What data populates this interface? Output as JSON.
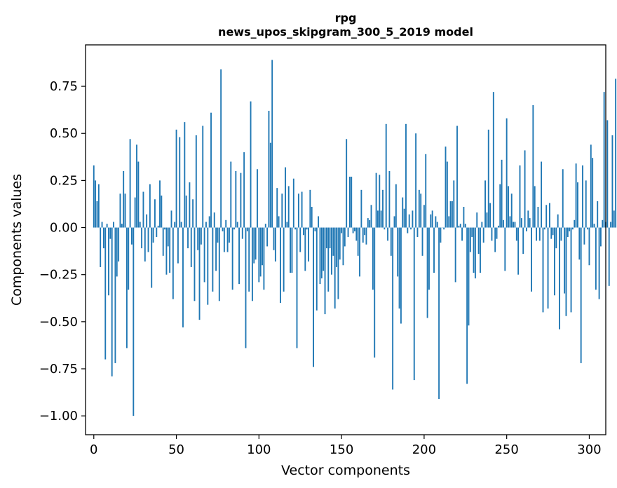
{
  "chart_data": {
    "type": "bar",
    "title": "rpg",
    "subtitle": "news_upos_skipgram_300_5_2019 model",
    "xlabel": "Vector components",
    "ylabel": "Components values",
    "xlim": [
      -5,
      310
    ],
    "ylim": [
      -1.1,
      0.97
    ],
    "xticks": [
      0,
      50,
      100,
      150,
      200,
      250,
      300
    ],
    "xtick_labels": [
      "0",
      "50",
      "100",
      "150",
      "200",
      "250",
      "300"
    ],
    "yticks": [
      0.75,
      0.5,
      0.25,
      0.0,
      -0.25,
      -0.5,
      -0.75,
      -1.0
    ],
    "ytick_labels": [
      "0.75",
      "0.50",
      "0.25",
      "0.00",
      "−0.25",
      "−0.50",
      "−0.75",
      "−1.00"
    ],
    "bar_color": "#1f77b4",
    "x_start": 0,
    "values": [
      0.33,
      0.25,
      0.14,
      0.23,
      -0.21,
      0.03,
      -0.11,
      -0.7,
      0.02,
      -0.36,
      -0.06,
      -0.79,
      0.03,
      -0.72,
      -0.26,
      -0.18,
      0.18,
      0.02,
      0.3,
      0.18,
      -0.64,
      -0.33,
      0.47,
      -0.09,
      -1.0,
      0.16,
      0.44,
      0.35,
      0.03,
      -0.11,
      0.19,
      -0.18,
      0.07,
      -0.13,
      0.23,
      -0.32,
      -0.08,
      0.15,
      -0.05,
      0.01,
      0.25,
      0.17,
      -0.15,
      -0.01,
      -0.25,
      -0.1,
      -0.24,
      0.09,
      -0.38,
      0.03,
      0.52,
      -0.19,
      0.48,
      0.03,
      -0.53,
      0.56,
      0.17,
      -0.11,
      0.24,
      -0.21,
      0.15,
      -0.39,
      0.49,
      -0.12,
      -0.49,
      -0.09,
      0.54,
      -0.29,
      0.03,
      -0.41,
      0.06,
      0.61,
      -0.34,
      0.08,
      -0.23,
      -0.08,
      -0.39,
      0.84,
      -0.02,
      -0.13,
      0.04,
      -0.13,
      -0.08,
      0.35,
      -0.33,
      -0.01,
      0.3,
      0.03,
      -0.3,
      0.29,
      -0.06,
      0.4,
      -0.64,
      -0.02,
      -0.34,
      0.67,
      -0.39,
      -0.19,
      -0.17,
      0.31,
      -0.29,
      -0.26,
      -0.2,
      -0.33,
      0.02,
      -0.1,
      0.62,
      0.45,
      0.89,
      -0.12,
      -0.18,
      0.21,
      0.06,
      -0.4,
      0.18,
      -0.34,
      0.32,
      0.03,
      0.22,
      -0.24,
      -0.24,
      0.26,
      -0.01,
      -0.64,
      0.18,
      -0.13,
      0.19,
      -0.04,
      -0.23,
      -0.01,
      -0.18,
      0.2,
      0.11,
      -0.74,
      -0.02,
      -0.44,
      0.06,
      -0.3,
      -0.27,
      -0.23,
      -0.46,
      -0.11,
      -0.34,
      -0.11,
      -0.25,
      -0.15,
      -0.43,
      -0.21,
      -0.38,
      -0.17,
      -0.03,
      -0.2,
      -0.1,
      0.47,
      -0.05,
      0.27,
      0.27,
      -0.03,
      -0.02,
      -0.07,
      -0.15,
      -0.26,
      0.2,
      -0.08,
      -0.04,
      -0.09,
      0.05,
      0.04,
      0.12,
      -0.33,
      -0.69,
      0.29,
      0.09,
      0.28,
      0.09,
      0.2,
      -0.01,
      0.55,
      -0.07,
      0.3,
      -0.15,
      -0.86,
      0.06,
      0.23,
      -0.26,
      -0.43,
      -0.51,
      0.16,
      0.1,
      0.55,
      -0.03,
      0.07,
      -0.01,
      0.09,
      -0.81,
      0.5,
      -0.05,
      0.2,
      0.18,
      -0.15,
      0.12,
      0.39,
      -0.48,
      -0.33,
      0.07,
      0.09,
      -0.24,
      0.06,
      0.03,
      -0.91,
      -0.08,
      0.0,
      -0.01,
      0.43,
      0.35,
      0.06,
      0.14,
      0.14,
      0.25,
      -0.29,
      0.54,
      0.01,
      0.02,
      -0.07,
      0.11,
      0.02,
      -0.83,
      -0.52,
      -0.13,
      -0.05,
      -0.24,
      -0.27,
      0.08,
      -0.14,
      -0.24,
      0.03,
      -0.08,
      0.25,
      0.08,
      0.52,
      0.13,
      -0.07,
      0.72,
      -0.13,
      -0.06,
      0.01,
      0.23,
      0.36,
      0.04,
      -0.23,
      0.58,
      0.22,
      0.06,
      0.18,
      0.03,
      0.03,
      -0.07,
      -0.25,
      0.33,
      0.05,
      -0.14,
      0.41,
      -0.02,
      0.09,
      0.05,
      -0.34,
      0.65,
      0.22,
      -0.07,
      0.11,
      -0.07,
      0.35,
      -0.45,
      -0.01,
      0.12,
      -0.43,
      0.13,
      -0.06,
      -0.04,
      -0.36,
      -0.11,
      0.07,
      -0.54,
      -0.07,
      0.31,
      -0.35,
      -0.47,
      -0.05,
      -0.02,
      -0.45,
      -0.01,
      0.04,
      0.34,
      0.24,
      -0.17,
      -0.72,
      0.33,
      -0.09,
      0.25,
      -0.01,
      -0.2,
      0.44,
      0.37,
      0.02,
      -0.33,
      0.14,
      -0.38,
      -0.1,
      0.04,
      0.72,
      0.03,
      0.57,
      -0.31,
      0.03,
      0.49,
      0.09,
      0.79
    ]
  }
}
